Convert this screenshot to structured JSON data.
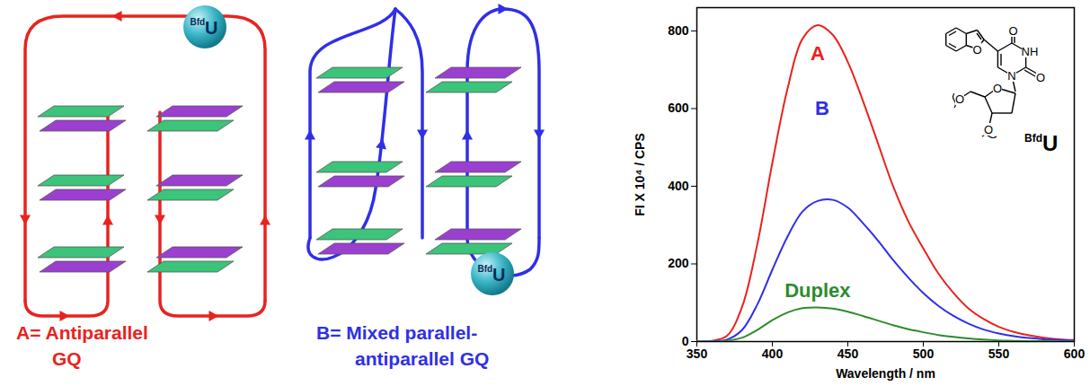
{
  "diagrams": [
    {
      "label_lines": [
        "A= Antiparallel",
        "GQ"
      ],
      "color": "#e8231e",
      "probe": {
        "sup": "Bfd",
        "main": "U"
      }
    },
    {
      "label_lines": [
        "B= Mixed parallel-",
        "antiparallel GQ"
      ],
      "color": "#2f2fe8",
      "probe": {
        "sup": "Bfd",
        "main": "U"
      }
    }
  ],
  "chart_data": {
    "type": "line",
    "x_label": "Wavelength / nm",
    "y_label": "FI X 10⁴ / CPS",
    "xlim": [
      350,
      600
    ],
    "xticks": [
      350,
      400,
      450,
      500,
      550,
      600
    ],
    "ylim": [
      0,
      860
    ],
    "yticks": [
      0,
      200,
      400,
      600,
      800
    ],
    "x": [
      350,
      360,
      370,
      380,
      390,
      400,
      410,
      420,
      430,
      440,
      450,
      460,
      470,
      480,
      490,
      500,
      510,
      520,
      530,
      540,
      550,
      560,
      570,
      580,
      590,
      600
    ],
    "series": [
      {
        "name": "A",
        "color": "#e8231e",
        "values": [
          0,
          2,
          15,
          90,
          250,
          460,
          650,
          780,
          815,
          790,
          720,
          620,
          510,
          400,
          310,
          240,
          175,
          125,
          85,
          58,
          38,
          25,
          16,
          10,
          6,
          4
        ]
      },
      {
        "name": "B",
        "color": "#2f2fe8",
        "values": [
          0,
          1,
          5,
          30,
          95,
          185,
          270,
          335,
          362,
          365,
          345,
          305,
          260,
          210,
          165,
          125,
          92,
          66,
          46,
          31,
          21,
          14,
          9,
          6,
          4,
          2
        ]
      },
      {
        "name": "Duplex",
        "color": "#2e8b2e",
        "values": [
          0,
          0,
          2,
          10,
          30,
          55,
          75,
          86,
          88,
          85,
          77,
          66,
          54,
          42,
          32,
          24,
          17,
          12,
          8,
          5,
          3,
          2,
          1,
          1,
          0,
          0
        ]
      }
    ],
    "annotations": [
      {
        "text": "A",
        "x": 430,
        "y": 740,
        "color": "#e8231e"
      },
      {
        "text": "B",
        "x": 433,
        "y": 600,
        "color": "#2f2fe8"
      },
      {
        "text": "Duplex",
        "x": 430,
        "y": 130,
        "color": "#2e8b2e"
      }
    ],
    "inset": {
      "label_sup": "Bfd",
      "label_main": "U",
      "atoms": [
        "O",
        "O",
        "NH",
        "O",
        "N",
        "O",
        "O",
        "O"
      ]
    }
  }
}
